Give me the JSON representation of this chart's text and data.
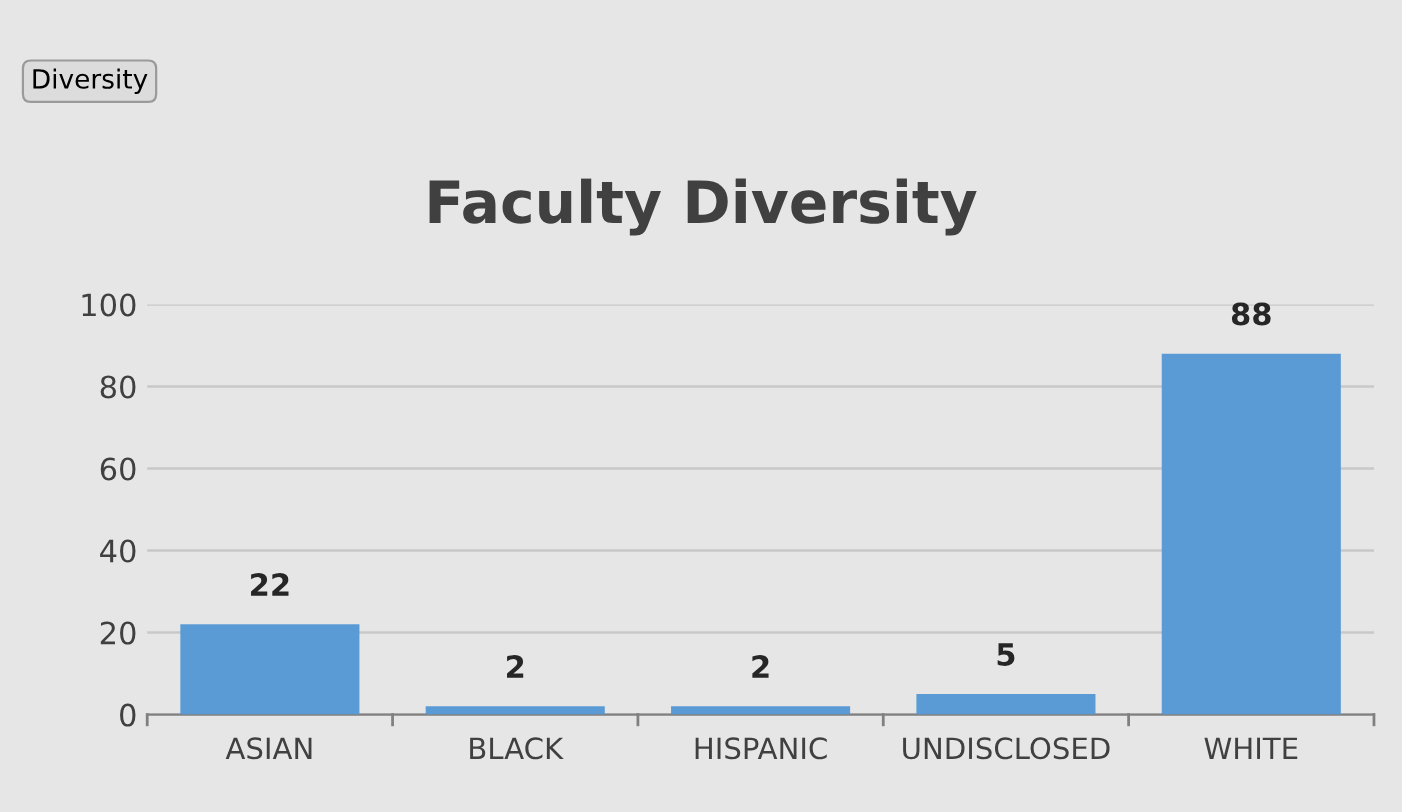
{
  "chart_data": {
    "type": "bar",
    "title": "Faculty Diversity",
    "annotations": [
      "Diversity"
    ],
    "categories": [
      "ASIAN",
      "BLACK",
      "HISPANIC",
      "UNDISCLOSED",
      "WHITE"
    ],
    "values": [
      22,
      2,
      2,
      5,
      88
    ],
    "color": "#5b9bd5",
    "ylim": [
      0,
      100
    ],
    "yticks": [
      0,
      20,
      40,
      60,
      80,
      100
    ],
    "grid": "y",
    "data_labels": true,
    "legend": false
  }
}
